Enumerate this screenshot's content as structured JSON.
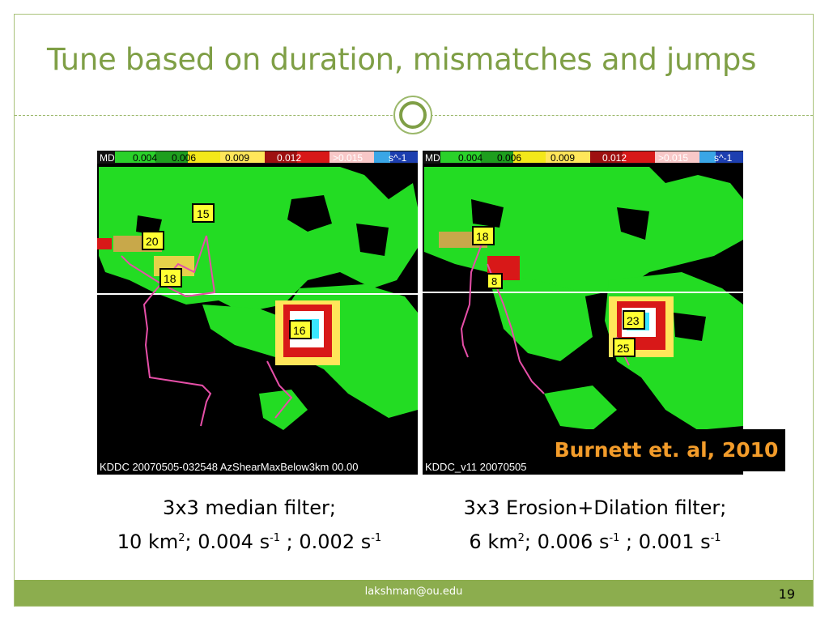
{
  "slide": {
    "title": "Tune based on duration, mismatches and jumps",
    "footer_email": "lakshman@ou.edu",
    "page_number": "19"
  },
  "left_panel": {
    "colorbar_label": "MD",
    "colorbar_ticks": [
      "0.004",
      "0.006",
      "0.009",
      "0.012",
      ">0.015"
    ],
    "colorbar_unit": "s^-1",
    "bottom_caption": "KDDC 20070505-032548 AzShearMaxBelow3km 00.00",
    "track_labels": [
      "15",
      "20",
      "18",
      "16"
    ]
  },
  "right_panel": {
    "colorbar_label": "MD",
    "colorbar_ticks": [
      "0.004",
      "0.006",
      "0.009",
      "0.012",
      ">0.015"
    ],
    "colorbar_unit": "s^-1",
    "bottom_caption": "KDDC_v11 20070505",
    "track_labels": [
      "18",
      "8",
      "23",
      "25"
    ]
  },
  "citation": "Burnett et. al, 2010",
  "captions": {
    "left": {
      "line1": "3x3 median filter;",
      "area_value": "10 km",
      "area_exp": "2",
      "rate1": "; 0.004 s",
      "rate1_exp": "-1",
      "rate2": " ; 0.002 s",
      "rate2_exp": "-1"
    },
    "right": {
      "line1": "3x3 Erosion+Dilation filter;",
      "area_value": "6 km",
      "area_exp": "2",
      "rate1": "; 0.006 s",
      "rate1_exp": "-1",
      "rate2": " ; 0.001 s",
      "rate2_exp": "-1"
    }
  },
  "colors": {
    "accent": "#7f9f46",
    "footer": "#8cad4e",
    "radar_green": "#23dc23",
    "track_pink": "#e64fa8",
    "citation_text": "#f39c2a"
  }
}
